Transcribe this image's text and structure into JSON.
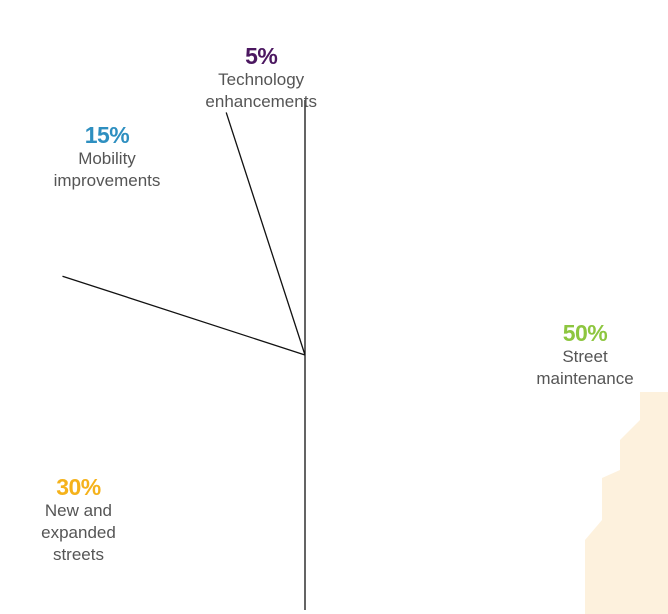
{
  "chart_data": {
    "type": "pie",
    "categories": [
      "Street maintenance",
      "New and expanded streets",
      "Mobility improvements",
      "Technology enhancements"
    ],
    "values": [
      50,
      30,
      15,
      5
    ],
    "value_labels": [
      "50%",
      "30%",
      "15%",
      "5%"
    ],
    "colors": [
      "#8dc63f",
      "#f5b21b",
      "#2e8fc0",
      "#4b1760"
    ]
  }
}
